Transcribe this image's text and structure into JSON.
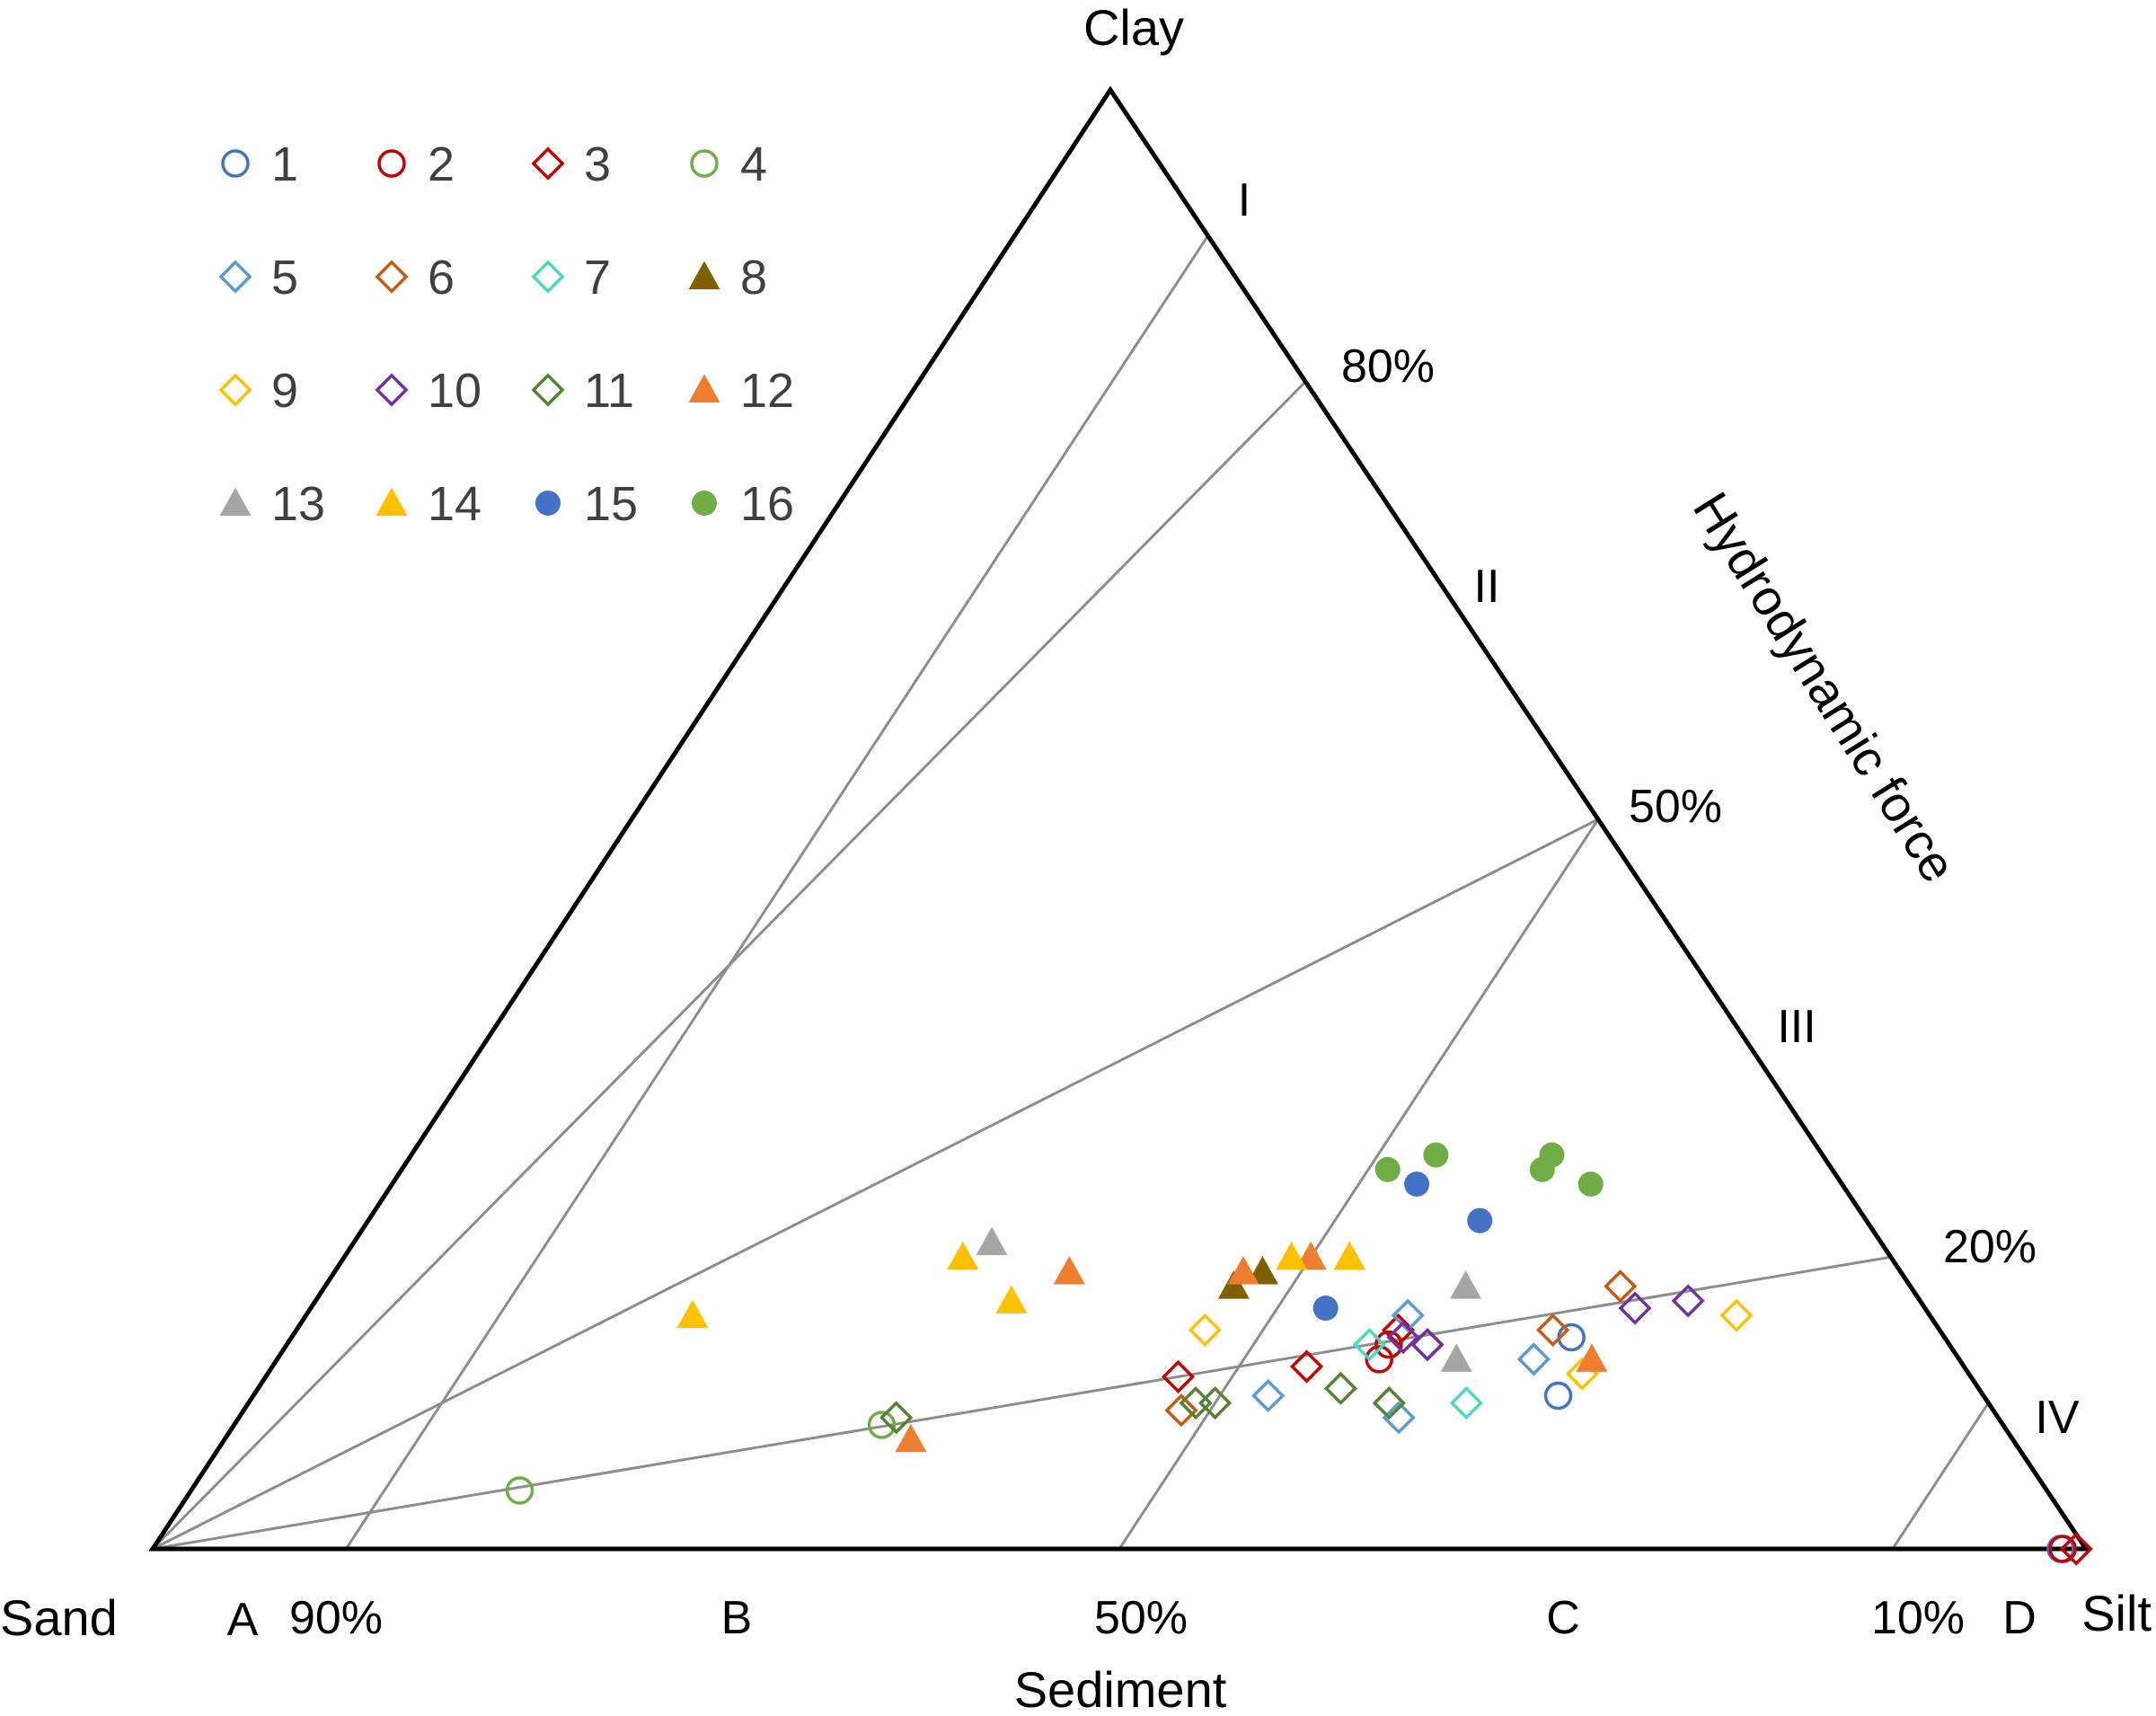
{
  "chart_data": {
    "type": "scatter",
    "subtype": "ternary",
    "vertex_labels": {
      "top": "Clay",
      "left": "Sand",
      "right": "Silt"
    },
    "axis_title_bottom": "Sediment",
    "axis_title_right": "Hydrodynamic force",
    "zone_labels_sediment": [
      "A",
      "B",
      "C",
      "D"
    ],
    "zone_labels_hydrodynamic": [
      "I",
      "II",
      "III",
      "IV"
    ],
    "sediment_ticks": [
      {
        "value": 0.9,
        "label": "90%"
      },
      {
        "value": 0.5,
        "label": "50%"
      },
      {
        "value": 0.1,
        "label": "10%"
      }
    ],
    "hydrodynamic_ticks": [
      {
        "value": 0.8,
        "label": "80%"
      },
      {
        "value": 0.5,
        "label": "50%"
      },
      {
        "value": 0.2,
        "label": "20%"
      }
    ],
    "grid": true,
    "legend_position": "top-left",
    "series": [
      {
        "name": "1",
        "marker": "circle-open",
        "color": "#4472C4",
        "points": [
          [
            0.013,
            0
          ],
          [
            0.193,
            0.145
          ],
          [
            0.22,
            0.105
          ]
        ]
      },
      {
        "name": "2",
        "marker": "circle-open",
        "color": "#C00000",
        "points": [
          [
            0.012,
            0
          ],
          [
            0.29,
            0.14
          ],
          [
            0.3,
            0.13
          ]
        ]
      },
      {
        "name": "3",
        "marker": "diamond-open",
        "color": "#C00000",
        "points": [
          [
            0.005,
            0
          ],
          [
            0.41,
            0.118
          ],
          [
            0.34,
            0.125
          ],
          [
            0.27,
            0.14
          ],
          [
            0.28,
            0.15
          ]
        ]
      },
      {
        "name": "4",
        "marker": "circle-open",
        "color": "#70AD47",
        "points": [
          [
            0.79,
            0.04
          ],
          [
            0.58,
            0.085
          ]
        ]
      },
      {
        "name": "5",
        "marker": "diamond-open",
        "color": "#5B9BD5",
        "points": [
          [
            0.37,
            0.105
          ],
          [
            0.31,
            0.09
          ],
          [
            0.22,
            0.13
          ],
          [
            0.27,
            0.16
          ]
        ]
      },
      {
        "name": "6",
        "marker": "diamond-open",
        "color": "#C55A11",
        "points": [
          [
            0.42,
            0.095
          ],
          [
            0.15,
            0.18
          ],
          [
            0.2,
            0.15
          ]
        ]
      },
      {
        "name": "7",
        "marker": "diamond-open",
        "color": "#4ED8C1",
        "points": [
          [
            0.27,
            0.1
          ],
          [
            0.3,
            0.14
          ]
        ]
      },
      {
        "name": "8",
        "marker": "triangle-filled",
        "color": "#7F6000",
        "points": [
          [
            0.28,
            0.2
          ],
          [
            0.33,
            0.19
          ],
          [
            0.35,
            0.18
          ]
        ]
      },
      {
        "name": "9",
        "marker": "diamond-open",
        "color": "#FFC000",
        "points": [
          [
            0.1,
            0.16
          ],
          [
            0.2,
            0.12
          ],
          [
            0.31,
            0.1
          ],
          [
            0.38,
            0.15
          ]
        ]
      },
      {
        "name": "10",
        "marker": "diamond-open",
        "color": "#7030A0",
        "points": [
          [
            0.12,
            0.17
          ],
          [
            0.15,
            0.165
          ],
          [
            0.28,
            0.145
          ],
          [
            0.27,
            0.14
          ]
        ]
      },
      {
        "name": "11",
        "marker": "diamond-open",
        "color": "#548235",
        "points": [
          [
            0.57,
            0.09
          ],
          [
            0.31,
            0.1
          ],
          [
            0.33,
            0.11
          ],
          [
            0.41,
            0.1
          ],
          [
            0.4,
            0.1
          ]
        ]
      },
      {
        "name": "12",
        "marker": "triangle-filled",
        "color": "#ED7D31",
        "points": [
          [
            0.57,
            0.075
          ],
          [
            0.43,
            0.19
          ],
          [
            0.34,
            0.19
          ],
          [
            0.19,
            0.13
          ],
          [
            0.3,
            0.2
          ]
        ]
      },
      {
        "name": "13",
        "marker": "triangle-filled",
        "color": "#A5A5A5",
        "points": [
          [
            0.46,
            0.21
          ],
          [
            0.23,
            0.18
          ],
          [
            0.26,
            0.13
          ]
        ]
      },
      {
        "name": "14",
        "marker": "triangle-filled",
        "color": "#FFC000",
        "points": [
          [
            0.64,
            0.16
          ],
          [
            0.48,
            0.2
          ],
          [
            0.47,
            0.17
          ],
          [
            0.31,
            0.2
          ],
          [
            0.28,
            0.2
          ]
        ]
      },
      {
        "name": "15",
        "marker": "circle-filled",
        "color": "#4472C4",
        "points": [
          [
            0.31,
            0.165
          ],
          [
            0.2,
            0.225
          ],
          [
            0.22,
            0.25
          ]
        ]
      },
      {
        "name": "16",
        "marker": "circle-filled",
        "color": "#70AD47",
        "points": [
          [
            0.2,
            0.27
          ],
          [
            0.15,
            0.26
          ],
          [
            0.13,
            0.25
          ],
          [
            0.14,
            0.27
          ],
          [
            0.23,
            0.26
          ]
        ]
      }
    ]
  }
}
